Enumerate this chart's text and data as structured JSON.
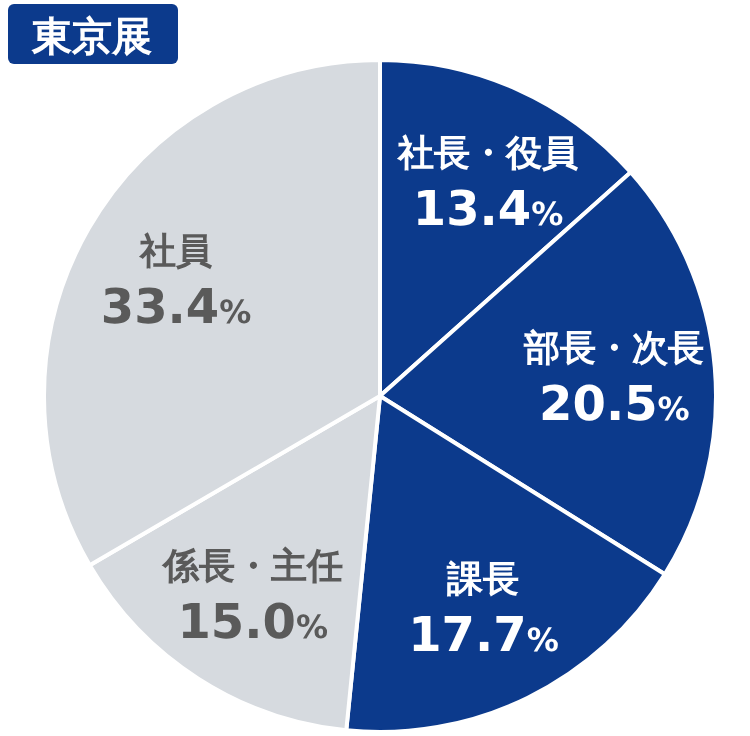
{
  "chart_data": {
    "type": "pie",
    "title": "東京展",
    "categories": [
      "社長・役員",
      "部長・次長",
      "課長",
      "係長・主任",
      "社員"
    ],
    "values": [
      13.4,
      20.5,
      17.7,
      15.0,
      33.4
    ],
    "value_labels": [
      "13.4%",
      "20.5%",
      "17.7%",
      "15.0%",
      "33.4%"
    ],
    "colors": [
      "#0c3a8c",
      "#0c3a8c",
      "#0c3a8c",
      "#d6dadf",
      "#d6dadf"
    ]
  }
}
